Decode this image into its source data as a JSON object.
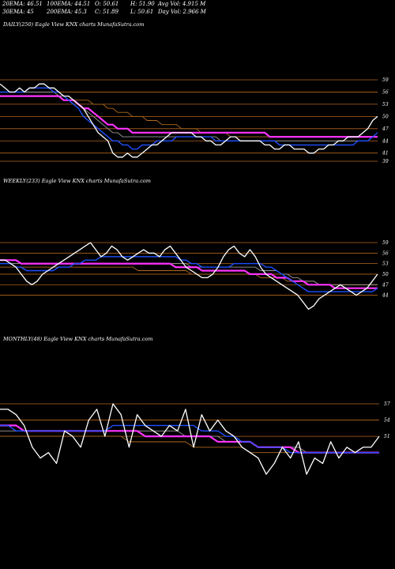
{
  "header": {
    "row1": [
      "20EMA: 46.51",
      "100EMA: 44.51",
      "O: 50.61",
      "H: 51.90",
      "Avg Vol: 4.915 M"
    ],
    "row2": [
      "30EMA: 45",
      "200EMA: 45.3",
      "C: 51.89",
      "L: 50.61",
      "Day Vol: 2.966  M"
    ]
  },
  "colors": {
    "background": "#000000",
    "price": "#ffffff",
    "ema_short": "#1e50ff",
    "ema_magenta": "#ff33ff",
    "ema_gray": "#9a9a9a",
    "ema_brown": "#b06a1e",
    "grid": "#b4641e",
    "text": "#ffffff"
  },
  "chart_data": [
    {
      "type": "line",
      "title": "DAILY(250) Eagle  View  KNX  charts MunafaSutra.com",
      "y_ticks": [
        59,
        56,
        53,
        50,
        47,
        44,
        41,
        39
      ],
      "series": [
        {
          "name": "price",
          "values": [
            58,
            57,
            56,
            56,
            57,
            56,
            57,
            57,
            58,
            58,
            57,
            57,
            56,
            55,
            55,
            54,
            53,
            52,
            50,
            48,
            46,
            45,
            44,
            41,
            40,
            40,
            41,
            40,
            40,
            41,
            42,
            43,
            43,
            44,
            45,
            46,
            46,
            46,
            46,
            46,
            45,
            45,
            44,
            44,
            43,
            43,
            44,
            45,
            45,
            44,
            44,
            44,
            44,
            44,
            43,
            43,
            42,
            42,
            43,
            43,
            42,
            42,
            42,
            41,
            41,
            42,
            42,
            43,
            43,
            44,
            44,
            45,
            45,
            45,
            46,
            47,
            49,
            50
          ]
        },
        {
          "name": "ema20",
          "values": [
            56,
            56,
            56,
            56,
            56,
            56,
            57,
            57,
            57,
            57,
            57,
            56,
            56,
            55,
            54,
            53,
            52,
            50,
            49,
            48,
            47,
            46,
            45,
            44,
            44,
            43,
            43,
            42,
            42,
            43,
            43,
            43,
            44,
            44,
            44,
            44,
            45,
            45,
            45,
            45,
            45,
            45,
            45,
            45,
            44,
            44,
            44,
            44,
            44,
            44,
            44,
            44,
            44,
            44,
            44,
            44,
            44,
            43,
            43,
            43,
            43,
            43,
            43,
            43,
            43,
            43,
            43,
            43,
            43,
            43,
            43,
            43,
            43,
            44,
            44,
            44,
            45,
            46
          ]
        },
        {
          "name": "ema_magenta",
          "values": [
            55,
            55,
            55,
            55,
            55,
            55,
            55,
            55,
            55,
            55,
            55,
            55,
            55,
            54,
            54,
            54,
            53,
            52,
            52,
            51,
            50,
            49,
            48,
            48,
            47,
            47,
            47,
            46,
            46,
            46,
            46,
            46,
            46,
            46,
            46,
            46,
            46,
            46,
            46,
            46,
            46,
            46,
            46,
            46,
            46,
            46,
            46,
            46,
            46,
            46,
            46,
            46,
            46,
            46,
            46,
            45,
            45,
            45,
            45,
            45,
            45,
            45,
            45,
            45,
            45,
            45,
            45,
            45,
            45,
            45,
            45,
            45,
            45,
            45,
            45,
            45,
            45,
            45
          ]
        },
        {
          "name": "ema_gray",
          "values": [
            56,
            56,
            56,
            56,
            56,
            56,
            56,
            56,
            56,
            56,
            56,
            56,
            55,
            55,
            54,
            54,
            53,
            52,
            51,
            50,
            49,
            48,
            47,
            46,
            46,
            45,
            45,
            45,
            45,
            45,
            45,
            45,
            45,
            45,
            45,
            45,
            45,
            45,
            45,
            45,
            45,
            45,
            45,
            45,
            45,
            44,
            44,
            44,
            44,
            44,
            44,
            44,
            44,
            44,
            44,
            44,
            44,
            44,
            44,
            44,
            44,
            44,
            44,
            44,
            44,
            44,
            44,
            44,
            44,
            44,
            44,
            44,
            44,
            44,
            44,
            44,
            45,
            45
          ]
        },
        {
          "name": "ema_brown",
          "values": [
            55,
            55,
            55,
            55,
            55,
            55,
            55,
            55,
            55,
            55,
            55,
            55,
            55,
            55,
            55,
            54,
            54,
            54,
            54,
            53,
            53,
            53,
            52,
            52,
            51,
            51,
            51,
            50,
            50,
            50,
            49,
            49,
            49,
            48,
            48,
            48,
            48,
            47,
            47,
            47,
            47,
            46,
            46,
            46,
            46,
            46,
            46,
            45,
            45,
            45,
            45,
            45,
            45,
            45,
            45,
            45,
            45,
            45,
            45,
            45,
            45,
            45,
            45,
            45,
            45,
            45,
            45,
            45,
            45,
            45,
            45,
            45,
            45,
            45,
            45,
            45,
            45,
            45
          ]
        }
      ]
    },
    {
      "type": "line",
      "title": "WEEKLY(233) Eagle  View  KNX  charts MunafaSutra.com",
      "y_ticks": [
        59,
        56,
        53,
        50,
        47,
        44
      ],
      "series": [
        {
          "name": "price",
          "values": [
            54,
            54,
            53,
            52,
            50,
            48,
            47,
            48,
            50,
            51,
            52,
            53,
            54,
            55,
            56,
            57,
            58,
            59,
            57,
            55,
            56,
            58,
            57,
            55,
            54,
            55,
            56,
            57,
            56,
            56,
            55,
            57,
            58,
            56,
            54,
            52,
            51,
            50,
            49,
            49,
            50,
            52,
            55,
            57,
            58,
            56,
            55,
            57,
            55,
            52,
            50,
            49,
            48,
            47,
            46,
            45,
            44,
            42,
            40,
            41,
            43,
            44,
            45,
            46,
            47,
            46,
            45,
            44,
            45,
            46,
            48,
            50
          ]
        },
        {
          "name": "ema20",
          "values": [
            53,
            53,
            53,
            52,
            52,
            51,
            51,
            51,
            51,
            51,
            51,
            52,
            52,
            52,
            53,
            53,
            54,
            54,
            54,
            55,
            55,
            55,
            55,
            55,
            55,
            55,
            55,
            55,
            55,
            55,
            55,
            55,
            55,
            55,
            54,
            54,
            53,
            53,
            52,
            52,
            52,
            52,
            52,
            52,
            53,
            53,
            53,
            53,
            53,
            53,
            52,
            52,
            51,
            50,
            49,
            48,
            47,
            46,
            45,
            45,
            45,
            45,
            45,
            45,
            45,
            45,
            45,
            45,
            45,
            45,
            45,
            46
          ]
        },
        {
          "name": "ema_magenta",
          "values": [
            54,
            54,
            54,
            54,
            53,
            53,
            53,
            53,
            53,
            53,
            53,
            53,
            53,
            53,
            53,
            53,
            53,
            53,
            53,
            53,
            53,
            53,
            53,
            53,
            53,
            53,
            53,
            53,
            53,
            53,
            53,
            53,
            53,
            52,
            52,
            52,
            52,
            52,
            51,
            51,
            51,
            51,
            51,
            51,
            51,
            51,
            51,
            50,
            50,
            50,
            50,
            50,
            49,
            49,
            49,
            48,
            48,
            48,
            47,
            47,
            47,
            47,
            47,
            46,
            46,
            46,
            46,
            46,
            46,
            46,
            46,
            46
          ]
        },
        {
          "name": "ema_gray",
          "values": [
            53,
            53,
            53,
            53,
            53,
            53,
            53,
            53,
            53,
            53,
            53,
            53,
            53,
            53,
            53,
            53,
            53,
            53,
            53,
            53,
            53,
            53,
            53,
            53,
            53,
            53,
            53,
            53,
            53,
            53,
            53,
            53,
            53,
            53,
            53,
            53,
            52,
            52,
            52,
            52,
            52,
            52,
            52,
            52,
            52,
            52,
            52,
            52,
            52,
            51,
            51,
            51,
            51,
            50,
            50,
            49,
            49,
            48,
            48,
            48,
            47,
            47,
            47,
            47,
            47,
            47,
            47,
            47,
            47,
            47,
            47,
            47
          ]
        },
        {
          "name": "ema_brown",
          "values": [
            52,
            52,
            52,
            52,
            52,
            52,
            52,
            52,
            52,
            52,
            52,
            52,
            52,
            52,
            52,
            52,
            52,
            52,
            52,
            52,
            52,
            52,
            52,
            52,
            52,
            52,
            51,
            51,
            51,
            51,
            51,
            51,
            51,
            51,
            51,
            51,
            50,
            50,
            50,
            50,
            50,
            50,
            50,
            50,
            50,
            50,
            50,
            50,
            50,
            49,
            49,
            49,
            49,
            49,
            48,
            48,
            48,
            48,
            48,
            48,
            47,
            47,
            47,
            47,
            47,
            47,
            47,
            47,
            47,
            47,
            47,
            47
          ]
        }
      ]
    },
    {
      "type": "line",
      "title": "MONTHLY(48) Eagle  View  KNX  charts MunafaSutra.com",
      "y_ticks": [
        57,
        54,
        51
      ],
      "series": [
        {
          "name": "price",
          "values": [
            56,
            56,
            55,
            53,
            49,
            47,
            48,
            46,
            52,
            51,
            49,
            54,
            56,
            51,
            57,
            55,
            49,
            55,
            53,
            52,
            51,
            53,
            52,
            56,
            49,
            55,
            52,
            54,
            52,
            51,
            49,
            48,
            47,
            44,
            46,
            49,
            47,
            50,
            44,
            47,
            46,
            50,
            47,
            49,
            48,
            49,
            49,
            51
          ]
        },
        {
          "name": "ema20",
          "values": [
            53,
            53,
            52,
            52,
            52,
            52,
            52,
            52,
            52,
            52,
            52,
            52,
            52,
            52,
            53,
            53,
            53,
            53,
            53,
            53,
            53,
            53,
            53,
            53,
            53,
            52,
            52,
            52,
            51,
            51,
            50,
            50,
            49,
            49,
            49,
            49,
            48,
            48,
            48,
            48,
            48,
            48,
            48,
            48,
            48,
            48,
            48,
            48
          ]
        },
        {
          "name": "ema_magenta",
          "values": [
            53,
            53,
            53,
            52,
            52,
            52,
            52,
            52,
            52,
            52,
            52,
            52,
            52,
            52,
            52,
            52,
            52,
            52,
            51,
            51,
            51,
            51,
            51,
            51,
            51,
            51,
            51,
            50,
            50,
            50,
            50,
            50,
            49,
            49,
            49,
            49,
            49,
            48,
            48,
            48,
            48,
            48,
            48,
            48,
            48,
            48,
            48,
            48
          ]
        },
        {
          "name": "ema_gray",
          "values": [
            52,
            52,
            52,
            52,
            52,
            52,
            52,
            52,
            52,
            52,
            52,
            52,
            52,
            52,
            52,
            52,
            52,
            52,
            52,
            52,
            52,
            52,
            52,
            51,
            51,
            51,
            51,
            51,
            50,
            50,
            50,
            50,
            49,
            49,
            49,
            49,
            49,
            49,
            48,
            48,
            48,
            48,
            48,
            48,
            48,
            48,
            48,
            48
          ]
        },
        {
          "name": "ema_brown",
          "values": [
            51,
            51,
            51,
            51,
            51,
            51,
            51,
            51,
            51,
            51,
            51,
            51,
            51,
            51,
            51,
            51,
            50,
            50,
            50,
            50,
            50,
            50,
            50,
            50,
            49,
            49,
            49,
            49,
            49,
            49,
            49,
            48,
            48,
            48,
            48,
            48,
            48,
            48,
            48,
            48,
            48,
            48,
            48,
            48,
            48,
            48,
            48,
            48
          ]
        }
      ]
    }
  ]
}
